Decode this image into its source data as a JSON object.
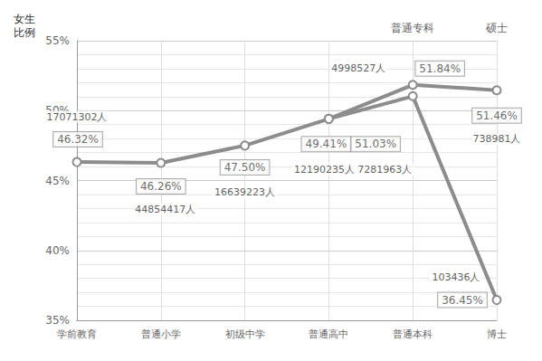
{
  "chart_data": {
    "type": "line",
    "y_label": "女生比例",
    "categories": [
      "学前教育",
      "普通小学",
      "初级中学",
      "普通高中",
      "普通本科",
      "博士"
    ],
    "top_categories": [
      null,
      null,
      null,
      null,
      "普通专科",
      "硕士"
    ],
    "series": [
      {
        "values": [
          46.32,
          46.26,
          47.5,
          49.41,
          51.03,
          36.45
        ],
        "value_labels": [
          "46.32%",
          "46.26%",
          "47.50%",
          "49.41%",
          "51.03%",
          "36.45%"
        ],
        "count_labels": [
          "17071302人",
          "44854417人",
          "16639223人",
          "12190235人",
          "7281963人",
          "103436人"
        ],
        "color": "#8c8c8c",
        "marker": "circle"
      },
      {
        "values": [
          null,
          null,
          null,
          49.41,
          51.84,
          51.46
        ],
        "value_labels": [
          null,
          null,
          null,
          null,
          "51.84%",
          "51.46%"
        ],
        "count_labels": [
          null,
          null,
          null,
          null,
          "4998527人",
          "738981人"
        ],
        "color": "#8c8c8c",
        "marker": "circle"
      }
    ],
    "ylim": [
      35,
      55
    ],
    "yticks": [
      {
        "value": 35,
        "label": "35%"
      },
      {
        "value": 40,
        "label": "40%"
      },
      {
        "value": 45,
        "label": "45%"
      },
      {
        "value": 50,
        "label": "50%"
      },
      {
        "value": 55,
        "label": "55%"
      }
    ],
    "grid": true,
    "data_labels": true
  }
}
